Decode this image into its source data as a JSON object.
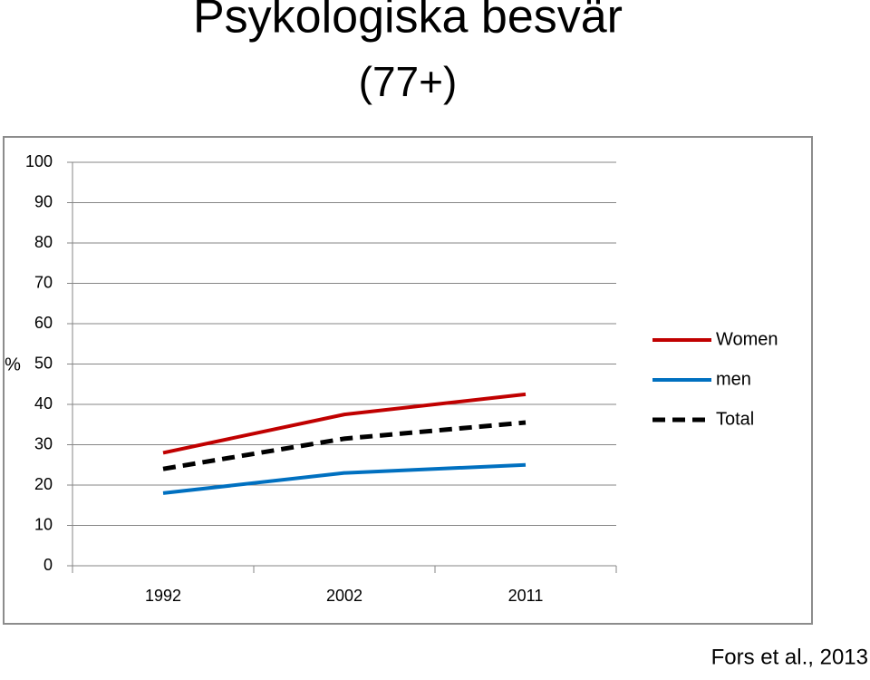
{
  "chart_data": {
    "type": "line",
    "title": "Psykologiska besvär",
    "subtitle": "(77+)",
    "y_label": "%",
    "annotation": "Fors et al., 2013",
    "categories": [
      "1992",
      "2002",
      "2011"
    ],
    "series": [
      {
        "name": "Women",
        "color": "#c00000",
        "values": [
          28,
          37.5,
          42.5
        ]
      },
      {
        "name": "men",
        "color": "#0070c0",
        "values": [
          18,
          23,
          25
        ]
      },
      {
        "name": "Total",
        "color": "#000000",
        "dashed": true,
        "values": [
          24,
          31.5,
          35.5
        ]
      }
    ],
    "ylim": [
      0,
      100
    ],
    "yticks": [
      0,
      10,
      20,
      30,
      40,
      50,
      60,
      70,
      80,
      90,
      100
    ],
    "grid": true,
    "legend": "right"
  }
}
